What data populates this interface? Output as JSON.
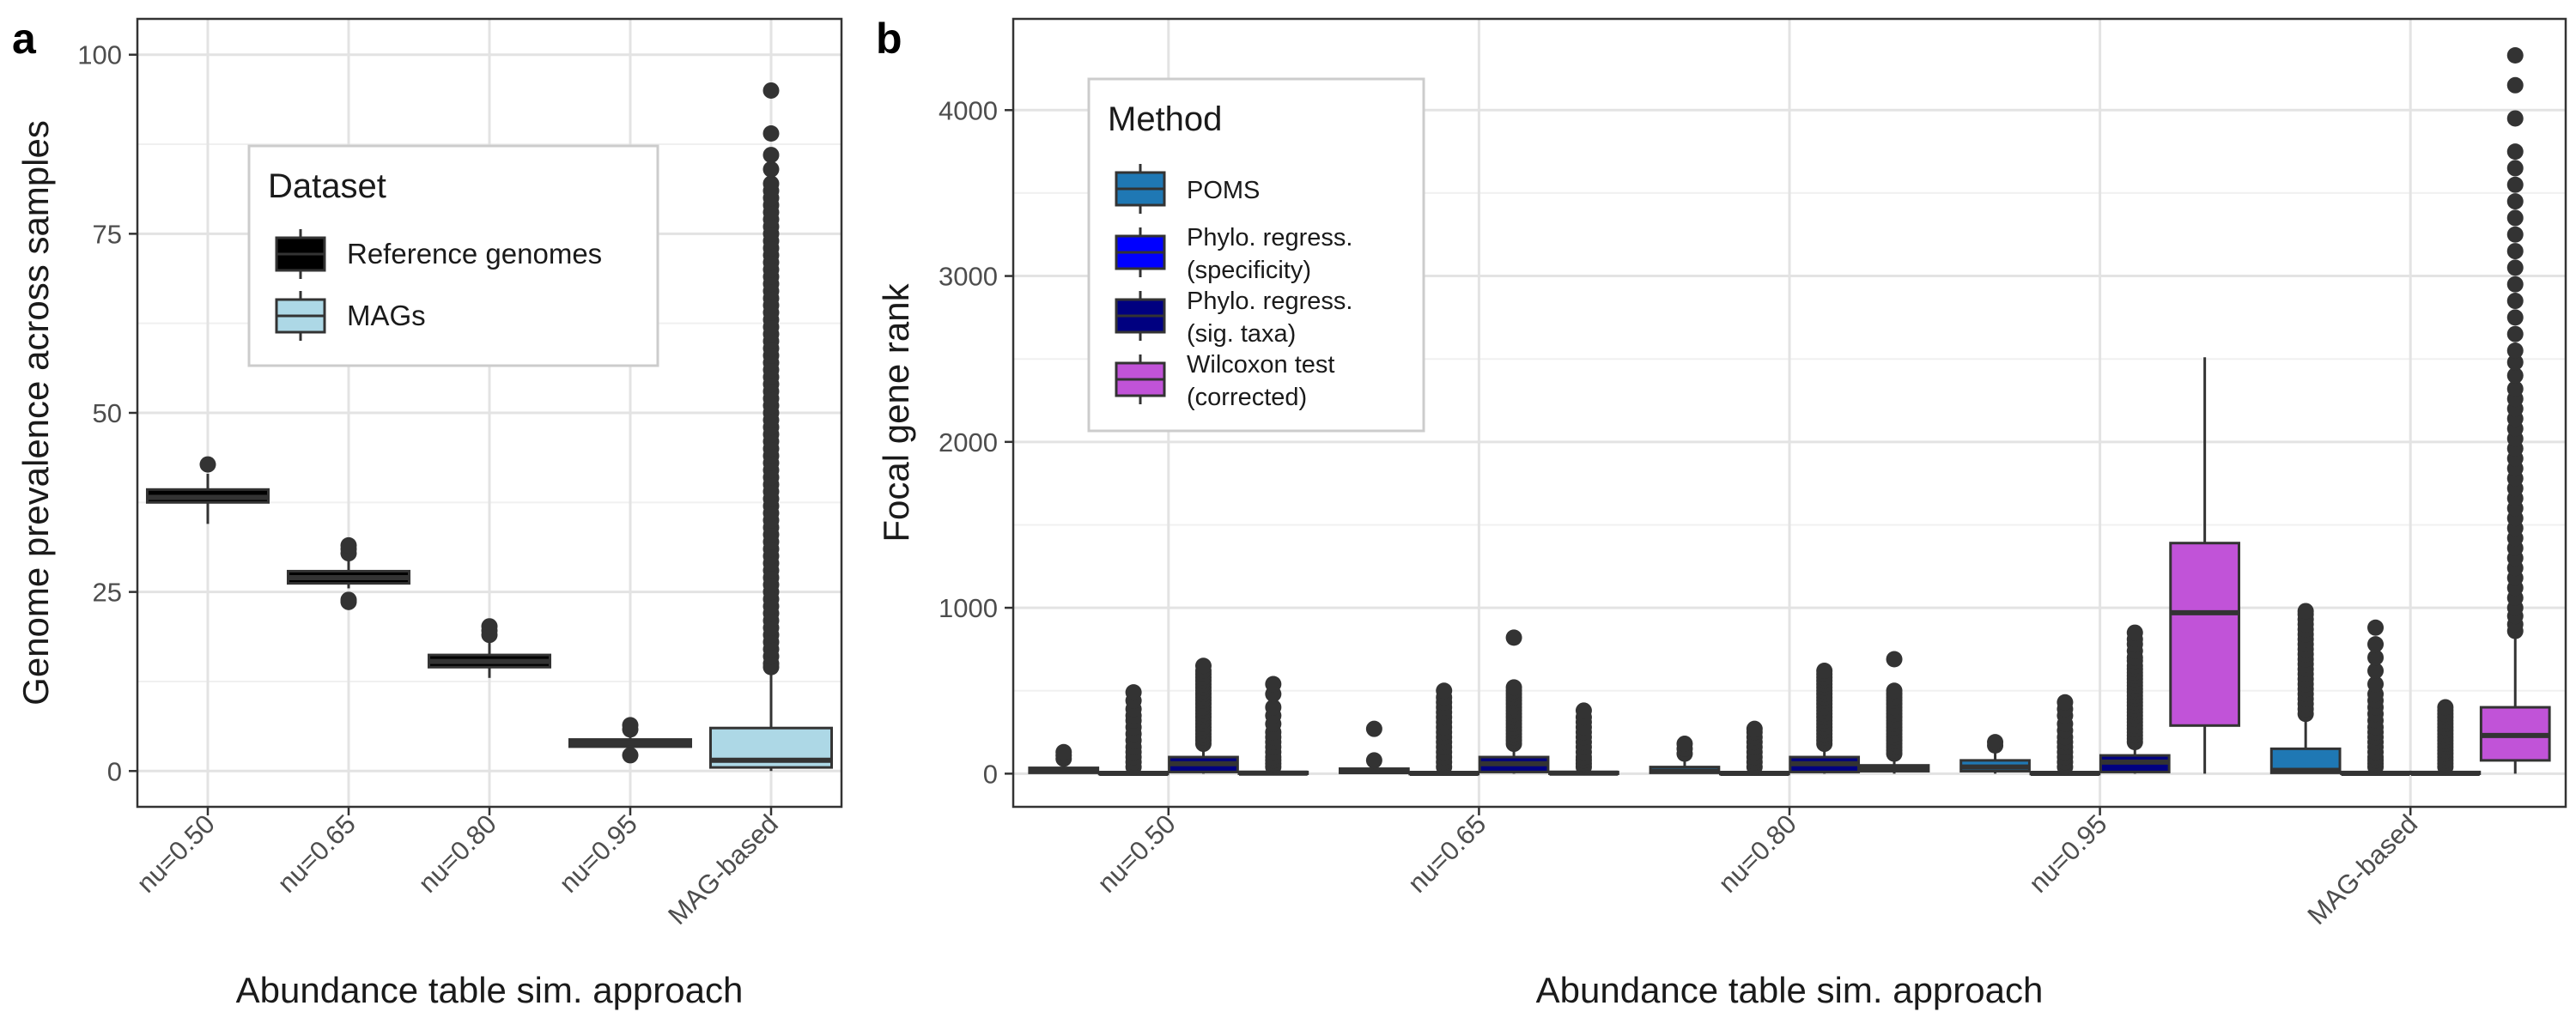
{
  "chart_data": [
    {
      "type": "box",
      "panel_label": "a",
      "xlabel": "Abundance table sim. approach",
      "ylabel": "Genome prevalence across samples",
      "categories": [
        "nu=0.50",
        "nu=0.65",
        "nu=0.80",
        "nu=0.95",
        "MAG-based"
      ],
      "ylim": [
        -5,
        105
      ],
      "yticks": [
        0,
        25,
        50,
        75,
        100
      ],
      "grid": true,
      "legend": {
        "title": "Dataset",
        "position": "top-center"
      },
      "series": [
        {
          "name": "Reference genomes",
          "color": "#000000",
          "boxes": [
            {
              "category": "nu=0.50",
              "whislo": 34.5,
              "q1": 37.5,
              "med": 38.2,
              "q3": 39.3,
              "whishi": 41.5,
              "outliers": [
                42.8
              ]
            },
            {
              "category": "nu=0.65",
              "whislo": 25.5,
              "q1": 26.2,
              "med": 27.0,
              "q3": 27.9,
              "whishi": 29.5,
              "outliers": [
                23.6,
                23.9,
                30.4,
                31.0,
                31.5
              ]
            },
            {
              "category": "nu=0.80",
              "whislo": 13.0,
              "q1": 14.5,
              "med": 15.3,
              "q3": 16.2,
              "whishi": 18.0,
              "outliers": [
                19.0,
                19.6,
                20.2
              ]
            },
            {
              "category": "nu=0.95",
              "whislo": 3.0,
              "q1": 3.4,
              "med": 3.9,
              "q3": 4.4,
              "whishi": 5.2,
              "outliers": [
                2.2,
                5.8,
                6.4
              ]
            }
          ]
        },
        {
          "name": "MAGs",
          "color": "#add8e6",
          "boxes": [
            {
              "category": "MAG-based",
              "whislo": 0,
              "q1": 0.5,
              "med": 1.5,
              "q3": 6.0,
              "whishi": 14.0,
              "outliers": [
                14.5,
                15,
                16,
                17,
                18,
                19,
                20,
                21,
                22,
                23,
                24,
                25,
                26,
                27,
                28,
                29,
                30,
                31,
                32,
                33,
                34,
                35,
                36,
                37,
                38,
                39,
                40,
                41,
                42,
                43,
                44,
                45,
                46,
                47,
                48,
                49,
                50,
                51,
                52,
                53,
                54,
                55,
                56,
                57,
                58,
                59,
                60,
                61,
                62,
                63,
                64,
                65,
                66,
                67,
                68,
                69,
                70,
                71,
                72,
                73,
                74,
                75,
                76,
                77,
                78,
                79,
                80,
                81,
                82,
                84,
                86,
                89,
                95
              ]
            }
          ]
        }
      ]
    },
    {
      "type": "box",
      "panel_label": "b",
      "xlabel": "Abundance table sim. approach",
      "ylabel": "Focal gene rank",
      "categories": [
        "nu=0.50",
        "nu=0.65",
        "nu=0.80",
        "nu=0.95",
        "MAG-based"
      ],
      "ylim": [
        -200,
        4550
      ],
      "yticks": [
        0,
        1000,
        2000,
        3000,
        4000
      ],
      "grid": true,
      "legend": {
        "title": "Method",
        "position": "top-left"
      },
      "series": [
        {
          "name": "POMS",
          "legend_lines": [
            "POMS"
          ],
          "color": "#1f78b4",
          "boxes": [
            {
              "category": "nu=0.50",
              "whislo": 0,
              "q1": 5,
              "med": 15,
              "q3": 35,
              "whishi": 70,
              "outliers": [
                90,
                110,
                130
              ]
            },
            {
              "category": "nu=0.65",
              "whislo": 0,
              "q1": 5,
              "med": 12,
              "q3": 30,
              "whishi": 60,
              "outliers": [
                80,
                270
              ]
            },
            {
              "category": "nu=0.80",
              "whislo": 0,
              "q1": 5,
              "med": 15,
              "q3": 40,
              "whishi": 90,
              "outliers": [
                120,
                150,
                180
              ]
            },
            {
              "category": "nu=0.95",
              "whislo": 0,
              "q1": 15,
              "med": 40,
              "q3": 80,
              "whishi": 140,
              "outliers": [
                170,
                190
              ]
            },
            {
              "category": "MAG-based",
              "whislo": 0,
              "q1": 5,
              "med": 20,
              "q3": 150,
              "whishi": 340,
              "outliers": [
                360,
                390,
                420,
                450,
                480,
                510,
                540,
                570,
                600,
                630,
                660,
                690,
                720,
                750,
                780,
                810,
                840,
                870,
                900,
                930,
                960,
                980
              ]
            }
          ]
        },
        {
          "name": "Phylo. regress. (specificity)",
          "legend_lines": [
            "Phylo. regress.",
            "(specificity)"
          ],
          "color": "#0000ff",
          "boxes": [
            {
              "category": "nu=0.50",
              "whislo": 0,
              "q1": 0,
              "med": 2,
              "q3": 8,
              "whishi": 20,
              "outliers": [
                40,
                70,
                100,
                130,
                160,
                200,
                240,
                280,
                320,
                350,
                390,
                440,
                490
              ]
            },
            {
              "category": "nu=0.65",
              "whislo": 0,
              "q1": 0,
              "med": 2,
              "q3": 8,
              "whishi": 20,
              "outliers": [
                40,
                70,
                100,
                130,
                160,
                190,
                220,
                250,
                280,
                310,
                340,
                370,
                400,
                430,
                460,
                500
              ]
            },
            {
              "category": "nu=0.80",
              "whislo": 0,
              "q1": 0,
              "med": 2,
              "q3": 8,
              "whishi": 20,
              "outliers": [
                40,
                70,
                100,
                130,
                160,
                190,
                220,
                250,
                270
              ]
            },
            {
              "category": "nu=0.95",
              "whislo": 0,
              "q1": 0,
              "med": 2,
              "q3": 8,
              "whishi": 20,
              "outliers": [
                40,
                70,
                100,
                130,
                160,
                190,
                220,
                260,
                300,
                350,
                390,
                430
              ]
            },
            {
              "category": "MAG-based",
              "whislo": 0,
              "q1": 0,
              "med": 2,
              "q3": 10,
              "whishi": 25,
              "outliers": [
                40,
                60,
                80,
                100,
                130,
                160,
                190,
                220,
                250,
                280,
                320,
                360,
                400,
                440,
                480,
                540,
                620,
                700,
                780,
                880
              ]
            }
          ]
        },
        {
          "name": "Phylo. regress. (sig. taxa)",
          "legend_lines": [
            "Phylo. regress.",
            "(sig. taxa)"
          ],
          "color": "#000080",
          "boxes": [
            {
              "category": "nu=0.50",
              "whislo": 0,
              "q1": 10,
              "med": 60,
              "q3": 100,
              "whishi": 160,
              "outliers": [
                180,
                200,
                220,
                240,
                260,
                280,
                300,
                320,
                340,
                360,
                380,
                400,
                420,
                440,
                460,
                480,
                500,
                520,
                540,
                560,
                580,
                600,
                620,
                650
              ]
            },
            {
              "category": "nu=0.65",
              "whislo": 0,
              "q1": 10,
              "med": 60,
              "q3": 100,
              "whishi": 160,
              "outliers": [
                180,
                200,
                220,
                240,
                260,
                280,
                300,
                320,
                340,
                360,
                380,
                400,
                420,
                440,
                460,
                480,
                500,
                520,
                820
              ]
            },
            {
              "category": "nu=0.80",
              "whislo": 0,
              "q1": 10,
              "med": 60,
              "q3": 100,
              "whishi": 160,
              "outliers": [
                180,
                200,
                220,
                240,
                260,
                280,
                300,
                320,
                340,
                360,
                380,
                400,
                420,
                440,
                460,
                480,
                500,
                520,
                540,
                560,
                580,
                600,
                620
              ]
            },
            {
              "category": "nu=0.95",
              "whislo": 0,
              "q1": 10,
              "med": 70,
              "q3": 110,
              "whishi": 170,
              "outliers": [
                190,
                210,
                230,
                250,
                270,
                290,
                310,
                330,
                350,
                370,
                390,
                410,
                430,
                450,
                470,
                490,
                510,
                530,
                550,
                570,
                590,
                610,
                630,
                650,
                680,
                700,
                740,
                780,
                810,
                850
              ]
            },
            {
              "category": "MAG-based",
              "whislo": 0,
              "q1": 0,
              "med": 2,
              "q3": 10,
              "whishi": 25,
              "outliers": [
                40,
                60,
                80,
                100,
                120,
                140,
                160,
                180,
                200,
                220,
                240,
                260,
                280,
                300,
                320,
                340,
                360,
                380,
                400
              ]
            }
          ]
        },
        {
          "name": "Wilcoxon test (corrected)",
          "legend_lines": [
            "Wilcoxon test",
            "(corrected)"
          ],
          "color": "#c153d8",
          "boxes": [
            {
              "category": "nu=0.50",
              "whislo": 0,
              "q1": 0,
              "med": 3,
              "q3": 10,
              "whishi": 25,
              "outliers": [
                40,
                60,
                80,
                100,
                130,
                160,
                190,
                220,
                250,
                300,
                350,
                400,
                480,
                540
              ]
            },
            {
              "category": "nu=0.65",
              "whislo": 0,
              "q1": 0,
              "med": 3,
              "q3": 10,
              "whishi": 25,
              "outliers": [
                40,
                60,
                80,
                100,
                130,
                160,
                190,
                220,
                250,
                280,
                310,
                340,
                380
              ]
            },
            {
              "category": "nu=0.80",
              "whislo": 0,
              "q1": 15,
              "med": 35,
              "q3": 50,
              "whishi": 100,
              "outliers": [
                120,
                140,
                160,
                180,
                200,
                220,
                240,
                260,
                280,
                300,
                320,
                340,
                360,
                380,
                400,
                420,
                440,
                460,
                480,
                500,
                690
              ]
            },
            {
              "category": "nu=0.95",
              "whislo": 0,
              "q1": 290,
              "med": 970,
              "q3": 1390,
              "whishi": 2510,
              "outliers": []
            },
            {
              "category": "MAG-based",
              "whislo": 0,
              "q1": 80,
              "med": 230,
              "q3": 400,
              "whishi": 820,
              "outliers": [
                860,
                900,
                950,
                1000,
                1060,
                1120,
                1180,
                1240,
                1300,
                1360,
                1420,
                1480,
                1540,
                1600,
                1660,
                1720,
                1780,
                1840,
                1900,
                1960,
                2020,
                2080,
                2140,
                2200,
                2260,
                2320,
                2400,
                2480,
                2550,
                2650,
                2750,
                2850,
                2950,
                3050,
                3150,
                3250,
                3350,
                3450,
                3550,
                3650,
                3750,
                3950,
                4150,
                4330
              ]
            }
          ]
        }
      ]
    }
  ]
}
